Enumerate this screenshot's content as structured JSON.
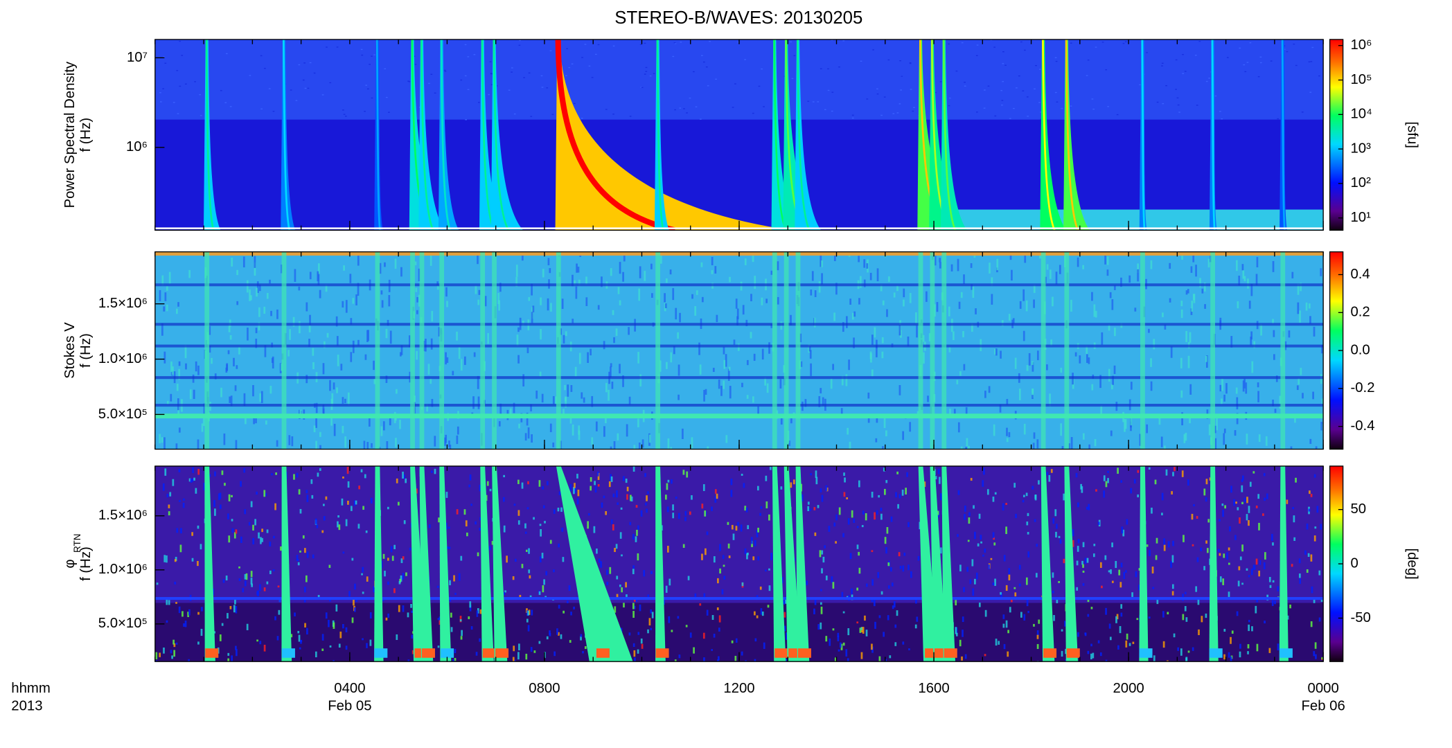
{
  "title": "STEREO-B/WAVES: 20130205",
  "x_axis": {
    "label_lines": [
      "hhmm",
      "2013"
    ],
    "xlim": [
      0,
      24
    ],
    "xticks": [
      {
        "value": 4,
        "label": "0400"
      },
      {
        "value": 8,
        "label": "0800"
      },
      {
        "value": 12,
        "label": "1200"
      },
      {
        "value": 16,
        "label": "1600"
      },
      {
        "value": 20,
        "label": "2000"
      },
      {
        "value": 24,
        "label": "0000"
      }
    ],
    "date_labels": [
      {
        "value": 4,
        "label": "Feb 05"
      },
      {
        "value": 24,
        "label": "Feb 06"
      }
    ]
  },
  "chart_data": [
    {
      "type": "spectrogram",
      "ylabel": [
        "Power Spectral Density",
        "f (Hz)"
      ],
      "yscale": "log",
      "ylim": [
        119000,
        16000000
      ],
      "yticks": [
        {
          "value": 1000000,
          "label": "10⁶"
        },
        {
          "value": 10000000,
          "label": "10⁷"
        }
      ],
      "colorbar": {
        "scale": "log",
        "lim": [
          4.4,
          1500000
        ],
        "label": "[sfu]",
        "ticks": [
          {
            "value": 10,
            "label": "10¹"
          },
          {
            "value": 100,
            "label": "10²"
          },
          {
            "value": 1000,
            "label": "10³"
          },
          {
            "value": 10000,
            "label": "10⁴"
          },
          {
            "value": 100000,
            "label": "10⁵"
          },
          {
            "value": 1000000,
            "label": "10⁶"
          }
        ]
      }
    },
    {
      "type": "spectrogram",
      "ylabel": [
        "Stokes V",
        "f (Hz)"
      ],
      "yscale": "linear",
      "ylim": [
        186000,
        1970000
      ],
      "yticks": [
        {
          "value": 500000,
          "label": "5.0×10⁵"
        },
        {
          "value": 1000000,
          "label": "1.0×10⁶"
        },
        {
          "value": 1500000,
          "label": "1.5×10⁶"
        }
      ],
      "colorbar": {
        "scale": "linear",
        "lim": [
          -0.52,
          0.52
        ],
        "ticks": [
          {
            "value": -0.4,
            "label": "-0.4"
          },
          {
            "value": -0.2,
            "label": "-0.2"
          },
          {
            "value": 0,
            "label": "0.0"
          },
          {
            "value": 0.2,
            "label": "0.2"
          },
          {
            "value": 0.4,
            "label": "0.4"
          }
        ]
      }
    },
    {
      "type": "spectrogram",
      "ylabel": [
        "φ",
        "f (Hz)"
      ],
      "ylabel_sub": "RTN",
      "yscale": "linear",
      "ylim": [
        152000,
        1960000
      ],
      "yticks": [
        {
          "value": 500000,
          "label": "5.0×10⁵"
        },
        {
          "value": 1000000,
          "label": "1.0×10⁶"
        },
        {
          "value": 1500000,
          "label": "1.5×10⁶"
        }
      ],
      "colorbar": {
        "scale": "linear",
        "lim": [
          -90,
          90
        ],
        "label": "[deg]",
        "ticks": [
          -50,
          0,
          50
        ]
      }
    }
  ]
}
